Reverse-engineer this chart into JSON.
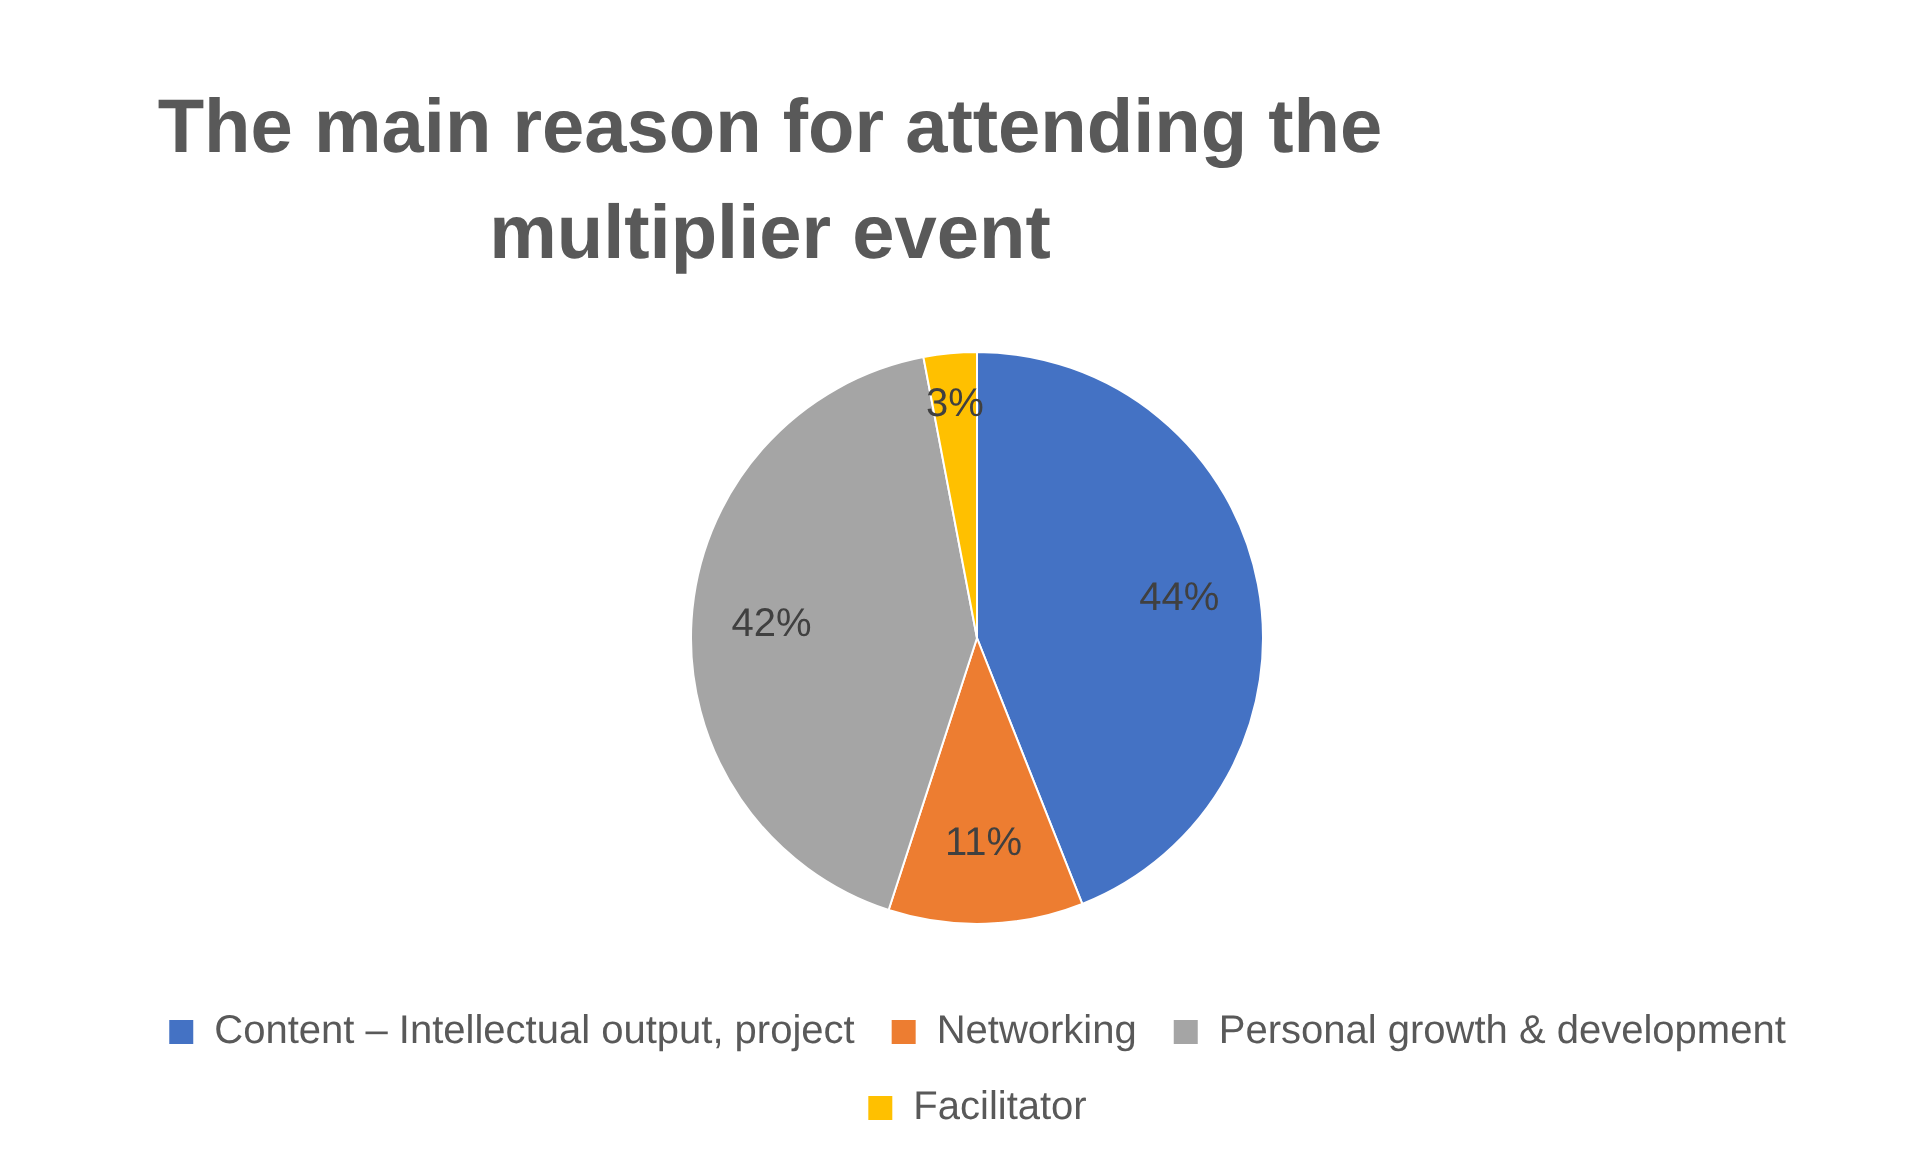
{
  "chart_data": {
    "type": "pie",
    "title": "The main reason for attending the multiplier event",
    "categories": [
      "Content – Intellectual output, project",
      "Networking",
      "Personal growth & development",
      "Facilitator"
    ],
    "values": [
      44,
      11,
      42,
      3
    ],
    "colors": [
      "#4472c4",
      "#ed7d31",
      "#a5a5a5",
      "#ffc000"
    ],
    "value_labels": [
      "44%",
      "11%",
      "42%",
      "3%"
    ],
    "legend": "bottom"
  }
}
